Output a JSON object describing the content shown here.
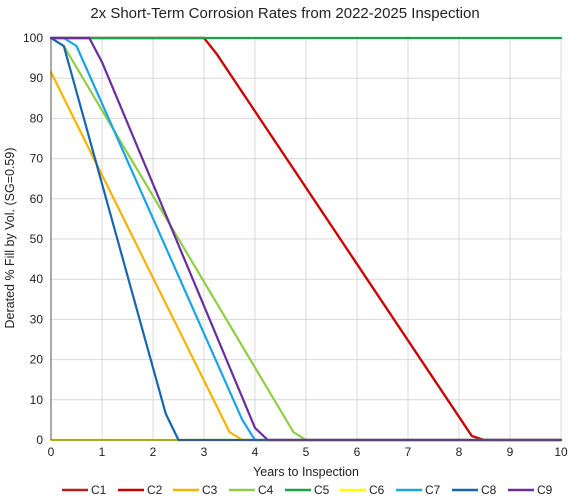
{
  "chart_data": {
    "type": "line",
    "title": "2x Short-Term Corrosion Rates from 2022-2025 Inspection",
    "xlabel": "Years to Inspection",
    "ylabel": "Derated % Fill by Vol. (SG=0.59)",
    "xlim": [
      0,
      10
    ],
    "ylim": [
      0,
      100
    ],
    "xticks": [
      "0",
      "1",
      "2",
      "3",
      "4",
      "5",
      "6",
      "7",
      "8",
      "9",
      "10"
    ],
    "yticks": [
      "0",
      "10",
      "20",
      "30",
      "40",
      "50",
      "60",
      "70",
      "80",
      "90",
      "100"
    ],
    "grid": true,
    "legend_position": "bottom",
    "series": [
      {
        "name": "C1",
        "color": "#b71c1c",
        "points": [
          [
            0,
            100
          ],
          [
            3.0,
            100
          ],
          [
            3.25,
            96
          ],
          [
            8.25,
            1
          ],
          [
            8.5,
            0
          ],
          [
            10,
            0
          ]
        ]
      },
      {
        "name": "C2",
        "color": "#cc0000",
        "points": [
          [
            0,
            100
          ],
          [
            3.0,
            100
          ],
          [
            3.25,
            96
          ],
          [
            8.25,
            1
          ],
          [
            8.5,
            0
          ],
          [
            10,
            0
          ]
        ]
      },
      {
        "name": "C3",
        "color": "#f5b400",
        "points": [
          [
            0,
            91.5
          ],
          [
            3.5,
            2
          ],
          [
            3.75,
            0
          ],
          [
            10,
            0
          ]
        ]
      },
      {
        "name": "C4",
        "color": "#8fce44",
        "points": [
          [
            0,
            100
          ],
          [
            0.25,
            98
          ],
          [
            4.75,
            2
          ],
          [
            5.0,
            0
          ],
          [
            10,
            0
          ]
        ]
      },
      {
        "name": "C5",
        "color": "#17a54a",
        "points": [
          [
            0,
            100
          ],
          [
            10,
            100
          ]
        ]
      },
      {
        "name": "C6",
        "color": "#ffff00",
        "points": [
          [
            0,
            0
          ],
          [
            10,
            0
          ]
        ]
      },
      {
        "name": "C7",
        "color": "#1aa3e8",
        "points": [
          [
            0,
            100
          ],
          [
            0.25,
            100
          ],
          [
            0.5,
            98
          ],
          [
            3.75,
            5
          ],
          [
            4.0,
            0
          ],
          [
            10,
            0
          ]
        ]
      },
      {
        "name": "C8",
        "color": "#1565b0",
        "points": [
          [
            0,
            100
          ],
          [
            0.25,
            98
          ],
          [
            2.25,
            6.5
          ],
          [
            2.5,
            0
          ],
          [
            10,
            0
          ]
        ]
      },
      {
        "name": "C9",
        "color": "#6a2d9e",
        "points": [
          [
            0,
            100
          ],
          [
            0.75,
            100
          ],
          [
            1.0,
            94
          ],
          [
            4.0,
            3
          ],
          [
            4.25,
            0
          ],
          [
            10,
            0
          ]
        ]
      }
    ]
  }
}
